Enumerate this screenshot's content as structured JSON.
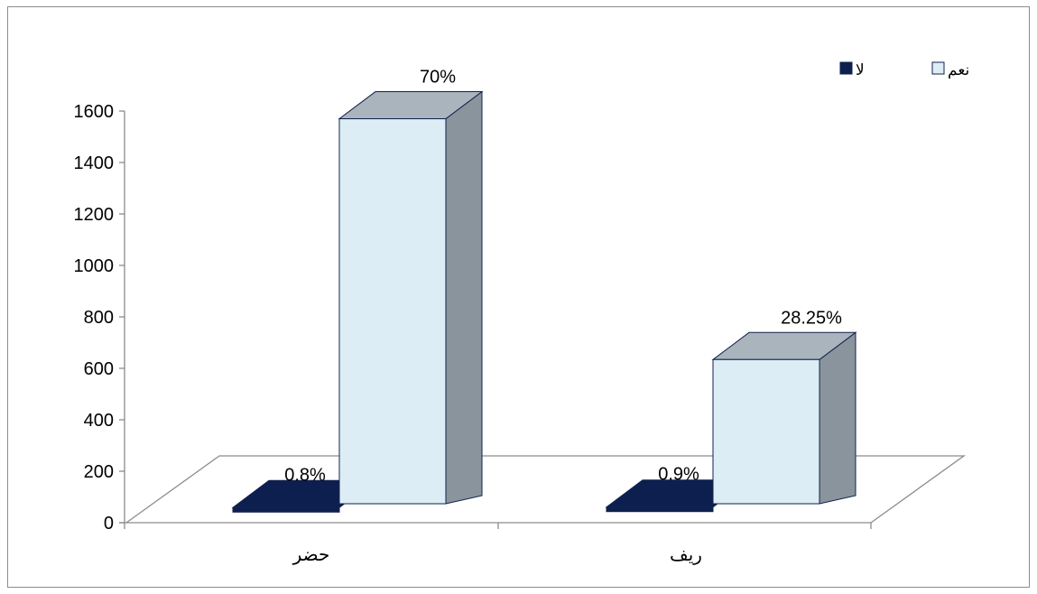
{
  "chart_data": {
    "type": "bar",
    "title": "",
    "xlabel": "",
    "ylabel": "",
    "categories": [
      "حضر",
      "ريف"
    ],
    "ylim": [
      0,
      1600
    ],
    "yticks": [
      0,
      200,
      400,
      600,
      800,
      1000,
      1200,
      1400,
      1600
    ],
    "series": [
      {
        "name": "لا",
        "values": [
          6,
          8
        ],
        "labels": [
          "0.8%",
          "0.9%"
        ]
      },
      {
        "name": "نعم",
        "values": [
          1570,
          634
        ],
        "labels": [
          "70%",
          "28.25%"
        ]
      }
    ],
    "legend_position": "top-right",
    "grid": false,
    "three_d": true,
    "colors": {
      "series_no": "#0d1f4f",
      "series_yes": "#dcedf5",
      "bar_side": "#8a949c",
      "bar_top": "#aab4bc",
      "bar_outline": "#12224f",
      "axis": "#8c8c8c"
    }
  }
}
